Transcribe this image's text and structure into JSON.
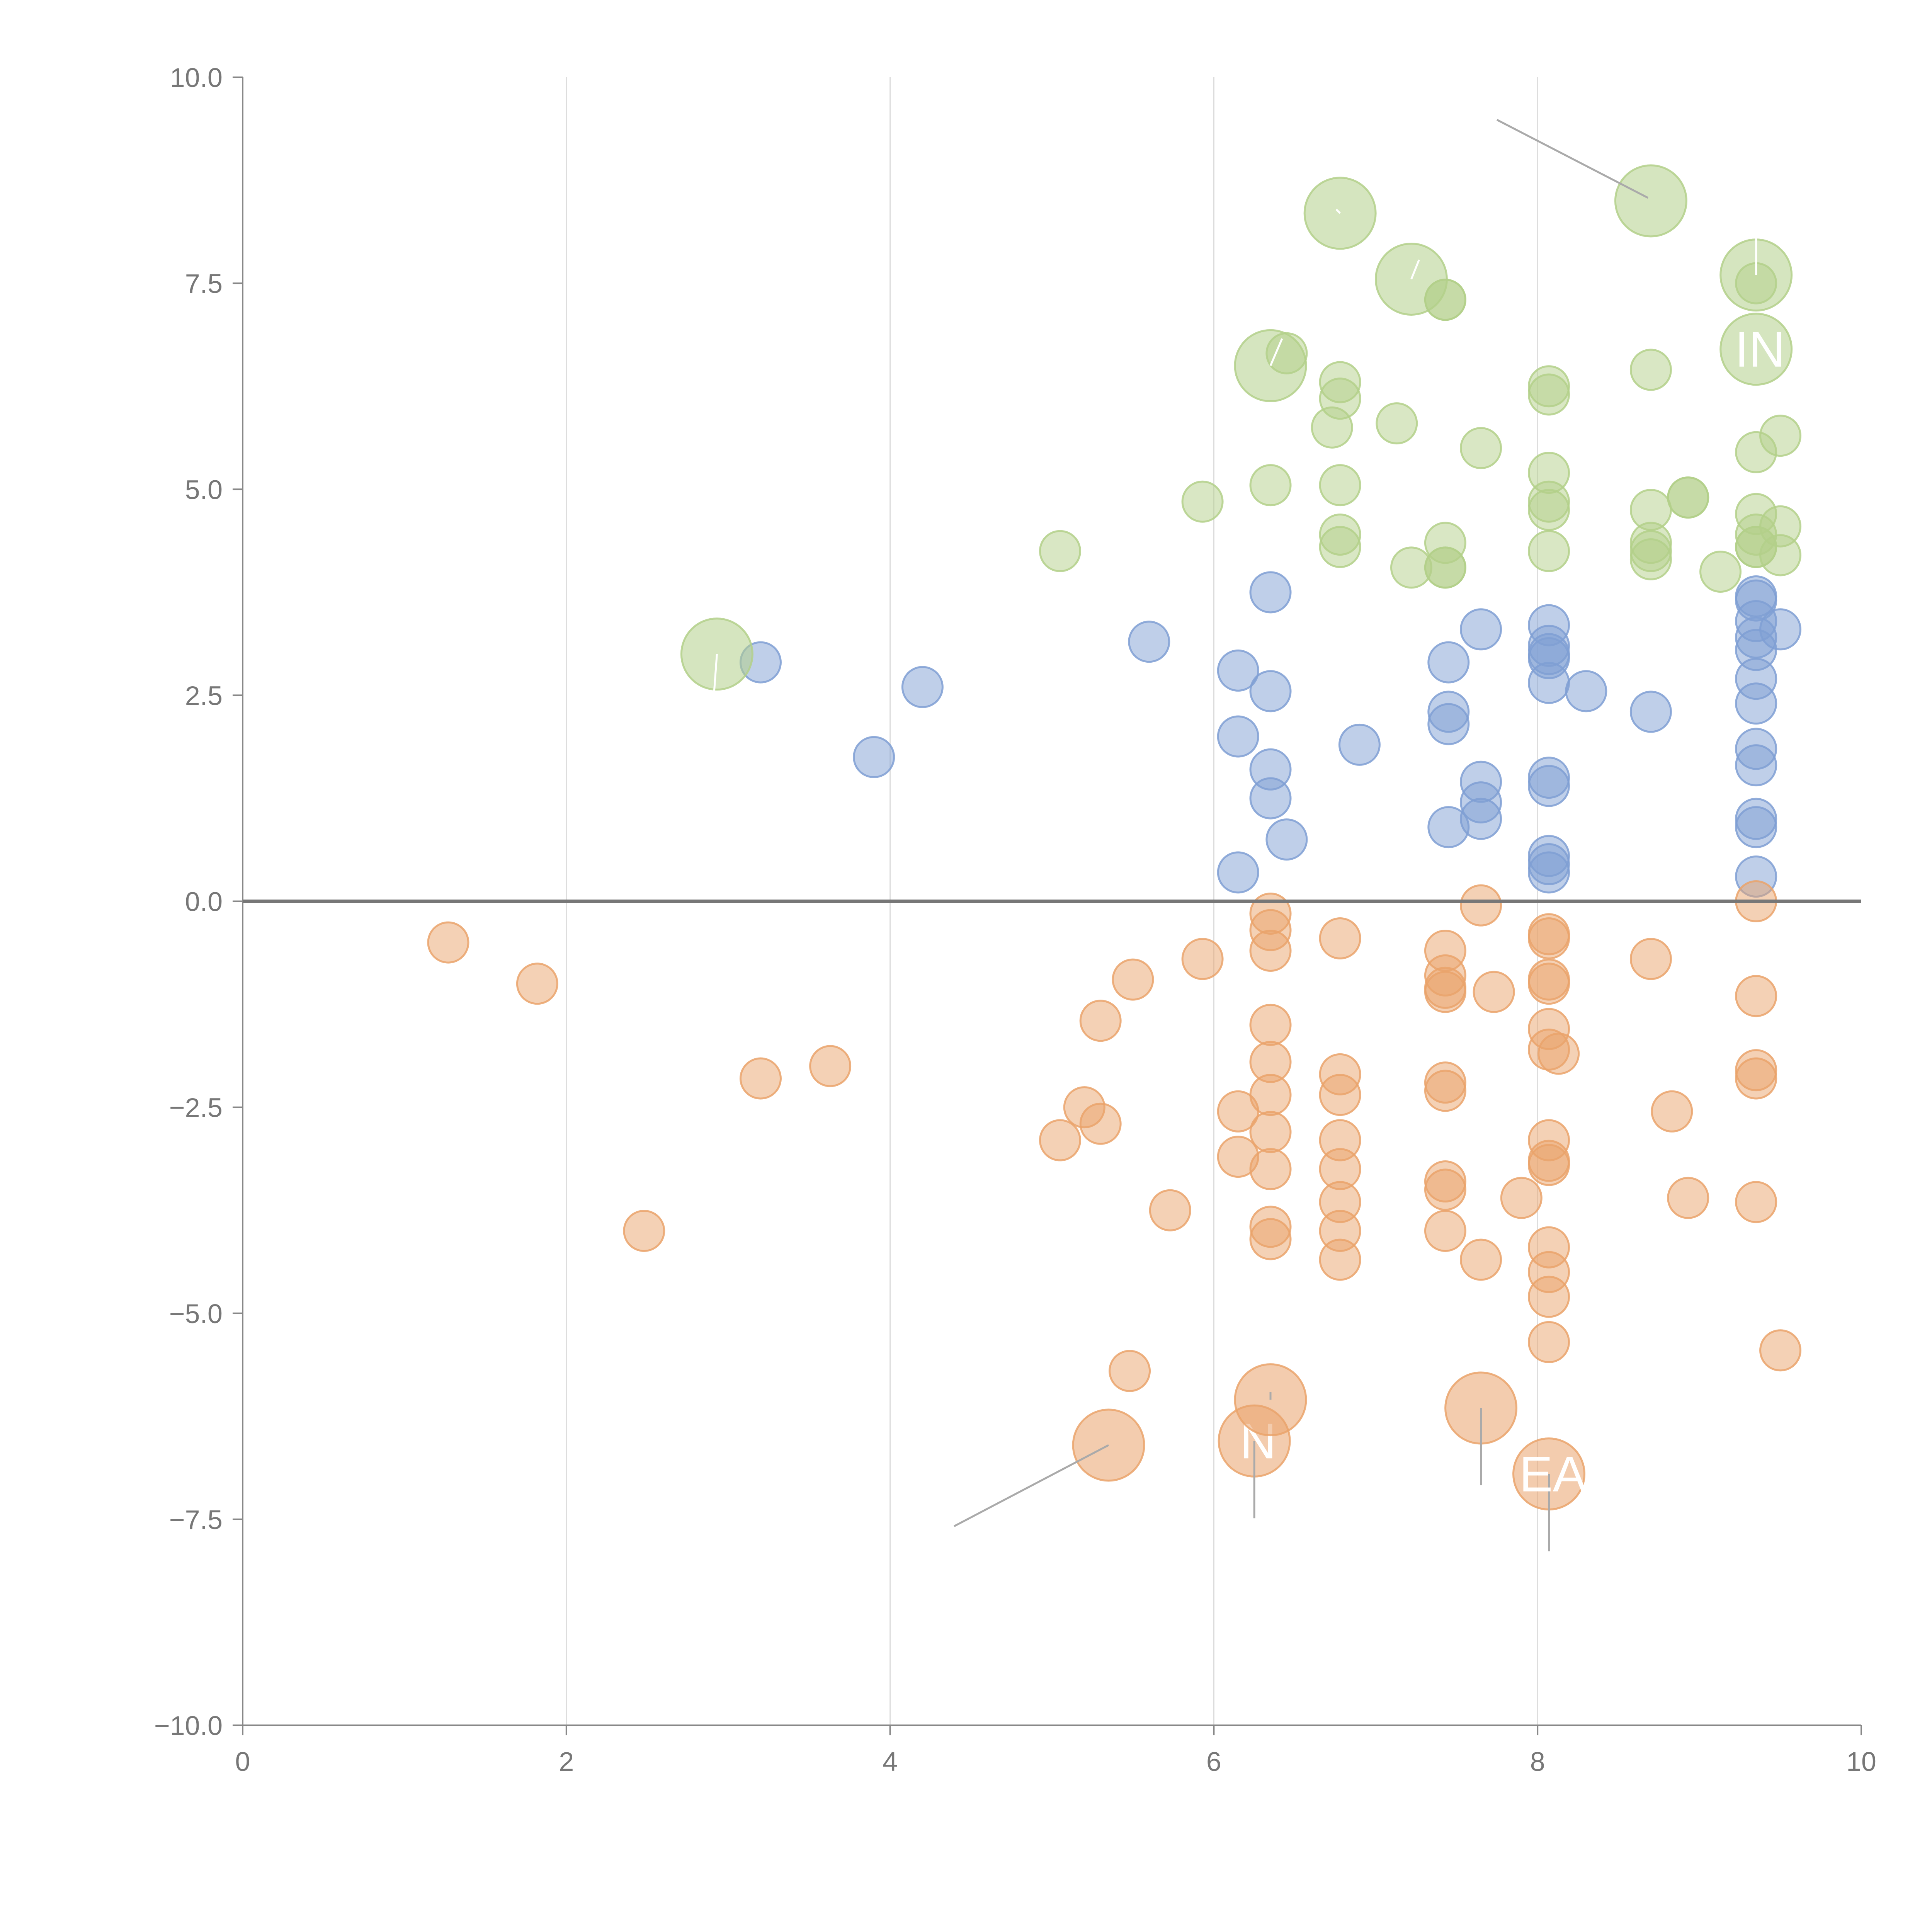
{
  "chart_data": {
    "type": "scatter",
    "title": "",
    "xlabel": "",
    "ylabel": "",
    "xlim": [
      0,
      10
    ],
    "ylim": [
      -10,
      10
    ],
    "xticks": [
      "0",
      "2",
      "4",
      "6",
      "8",
      "10"
    ],
    "xtick_values": [
      0,
      2,
      4,
      6,
      8,
      10
    ],
    "yticks": [
      "10.0",
      "7.5",
      "5.0",
      "2.5",
      "0.0",
      "−2.5",
      "−5.0",
      "−7.5",
      "−10.0"
    ],
    "ytick_values": [
      10,
      7.5,
      5,
      2.5,
      0,
      -2.5,
      -5,
      -7.5,
      -10
    ],
    "vertical_gridlines_at": [
      2,
      4,
      6,
      8
    ],
    "zero_line": 0,
    "colors": {
      "blue": "#7f9fd3",
      "orange": "#eaa36b",
      "green": "#b3d08a",
      "axis": "#888888",
      "grid": "#dddddd",
      "zero_line": "#777777",
      "leader": "#aaaaaa",
      "leader_light": "#ffffff"
    },
    "series": [
      {
        "name": "blue",
        "color": "#7f9fd3",
        "points": [
          {
            "x": 3.2,
            "y": 2.9
          },
          {
            "x": 3.9,
            "y": 1.75
          },
          {
            "x": 4.2,
            "y": 2.6
          },
          {
            "x": 5.6,
            "y": 3.15
          },
          {
            "x": 6.15,
            "y": 2.8
          },
          {
            "x": 6.15,
            "y": 2.0
          },
          {
            "x": 6.15,
            "y": 0.35
          },
          {
            "x": 6.35,
            "y": 3.75
          },
          {
            "x": 6.35,
            "y": 2.55
          },
          {
            "x": 6.35,
            "y": 1.6
          },
          {
            "x": 6.35,
            "y": 1.25
          },
          {
            "x": 6.45,
            "y": 0.75
          },
          {
            "x": 6.9,
            "y": 1.9
          },
          {
            "x": 7.45,
            "y": 2.9
          },
          {
            "x": 7.45,
            "y": 2.3
          },
          {
            "x": 7.45,
            "y": 2.15
          },
          {
            "x": 7.45,
            "y": 0.9
          },
          {
            "x": 7.65,
            "y": 3.3
          },
          {
            "x": 7.65,
            "y": 1.45
          },
          {
            "x": 7.65,
            "y": 1.2
          },
          {
            "x": 7.65,
            "y": 1.0
          },
          {
            "x": 8.07,
            "y": 3.35
          },
          {
            "x": 8.07,
            "y": 3.1
          },
          {
            "x": 8.07,
            "y": 3.0
          },
          {
            "x": 8.07,
            "y": 2.95
          },
          {
            "x": 8.07,
            "y": 2.65
          },
          {
            "x": 8.07,
            "y": 1.5
          },
          {
            "x": 8.07,
            "y": 1.4
          },
          {
            "x": 8.07,
            "y": 0.55
          },
          {
            "x": 8.07,
            "y": 0.45
          },
          {
            "x": 8.07,
            "y": 0.35
          },
          {
            "x": 8.3,
            "y": 2.55
          },
          {
            "x": 8.7,
            "y": 2.3
          },
          {
            "x": 9.35,
            "y": 3.7
          },
          {
            "x": 9.35,
            "y": 3.65
          },
          {
            "x": 9.35,
            "y": 3.4
          },
          {
            "x": 9.35,
            "y": 3.2
          },
          {
            "x": 9.35,
            "y": 3.05
          },
          {
            "x": 9.35,
            "y": 2.7
          },
          {
            "x": 9.35,
            "y": 2.4
          },
          {
            "x": 9.35,
            "y": 1.85
          },
          {
            "x": 9.35,
            "y": 1.65
          },
          {
            "x": 9.35,
            "y": 1.0
          },
          {
            "x": 9.35,
            "y": 0.9
          },
          {
            "x": 9.35,
            "y": 0.3
          },
          {
            "x": 9.5,
            "y": 3.3
          }
        ]
      },
      {
        "name": "orange",
        "color": "#eaa36b",
        "points": [
          {
            "x": 1.27,
            "y": -0.5
          },
          {
            "x": 1.82,
            "y": -1.0
          },
          {
            "x": 2.48,
            "y": -4.0
          },
          {
            "x": 3.2,
            "y": -2.15
          },
          {
            "x": 3.63,
            "y": -2.0
          },
          {
            "x": 5.05,
            "y": -2.9
          },
          {
            "x": 5.2,
            "y": -2.5
          },
          {
            "x": 5.3,
            "y": -2.7
          },
          {
            "x": 5.3,
            "y": -1.45
          },
          {
            "x": 5.5,
            "y": -0.95
          },
          {
            "x": 5.48,
            "y": -5.7
          },
          {
            "x": 5.73,
            "y": -3.75
          },
          {
            "x": 5.93,
            "y": -0.7
          },
          {
            "x": 6.15,
            "y": -2.55
          },
          {
            "x": 6.15,
            "y": -3.1
          },
          {
            "x": 6.35,
            "y": -0.15
          },
          {
            "x": 6.35,
            "y": -0.35
          },
          {
            "x": 6.35,
            "y": -0.6
          },
          {
            "x": 6.35,
            "y": -1.5
          },
          {
            "x": 6.35,
            "y": -1.95
          },
          {
            "x": 6.35,
            "y": -2.35
          },
          {
            "x": 6.35,
            "y": -2.8
          },
          {
            "x": 6.35,
            "y": -3.25
          },
          {
            "x": 6.35,
            "y": -3.95
          },
          {
            "x": 6.35,
            "y": -4.1
          },
          {
            "x": 6.78,
            "y": -0.45
          },
          {
            "x": 6.78,
            "y": -2.1
          },
          {
            "x": 6.78,
            "y": -2.35
          },
          {
            "x": 6.78,
            "y": -2.9
          },
          {
            "x": 6.78,
            "y": -3.25
          },
          {
            "x": 6.78,
            "y": -3.65
          },
          {
            "x": 6.78,
            "y": -4.0
          },
          {
            "x": 6.78,
            "y": -4.35
          },
          {
            "x": 7.43,
            "y": -0.6
          },
          {
            "x": 7.43,
            "y": -0.9
          },
          {
            "x": 7.43,
            "y": -1.05
          },
          {
            "x": 7.43,
            "y": -1.1
          },
          {
            "x": 7.43,
            "y": -2.2
          },
          {
            "x": 7.43,
            "y": -2.3
          },
          {
            "x": 7.43,
            "y": -3.4
          },
          {
            "x": 7.43,
            "y": -3.5
          },
          {
            "x": 7.43,
            "y": -4.0
          },
          {
            "x": 7.65,
            "y": -0.05
          },
          {
            "x": 7.65,
            "y": -4.35
          },
          {
            "x": 7.73,
            "y": -1.1
          },
          {
            "x": 7.9,
            "y": -3.6
          },
          {
            "x": 8.07,
            "y": -0.4
          },
          {
            "x": 8.07,
            "y": -0.45
          },
          {
            "x": 8.07,
            "y": -0.95
          },
          {
            "x": 8.07,
            "y": -1.0
          },
          {
            "x": 8.07,
            "y": -1.55
          },
          {
            "x": 8.07,
            "y": -1.8
          },
          {
            "x": 8.13,
            "y": -1.85
          },
          {
            "x": 8.07,
            "y": -2.9
          },
          {
            "x": 8.07,
            "y": -3.15
          },
          {
            "x": 8.07,
            "y": -3.2
          },
          {
            "x": 8.07,
            "y": -4.2
          },
          {
            "x": 8.07,
            "y": -4.5
          },
          {
            "x": 8.07,
            "y": -4.8
          },
          {
            "x": 8.07,
            "y": -5.35
          },
          {
            "x": 8.7,
            "y": -0.7
          },
          {
            "x": 8.83,
            "y": -2.55
          },
          {
            "x": 8.93,
            "y": -3.6
          },
          {
            "x": 9.35,
            "y": 0.0
          },
          {
            "x": 9.35,
            "y": -1.15
          },
          {
            "x": 9.35,
            "y": -2.05
          },
          {
            "x": 9.35,
            "y": -2.15
          },
          {
            "x": 9.35,
            "y": -3.65
          },
          {
            "x": 9.5,
            "y": -5.45
          }
        ]
      },
      {
        "name": "green",
        "color": "#b3d08a",
        "points": [
          {
            "x": 5.05,
            "y": 4.25
          },
          {
            "x": 5.93,
            "y": 4.85
          },
          {
            "x": 6.35,
            "y": 5.05
          },
          {
            "x": 6.45,
            "y": 6.65
          },
          {
            "x": 6.73,
            "y": 5.75
          },
          {
            "x": 6.78,
            "y": 6.3
          },
          {
            "x": 6.78,
            "y": 6.1
          },
          {
            "x": 6.78,
            "y": 5.05
          },
          {
            "x": 6.78,
            "y": 4.45
          },
          {
            "x": 6.78,
            "y": 4.3
          },
          {
            "x": 7.13,
            "y": 5.8
          },
          {
            "x": 7.22,
            "y": 4.05
          },
          {
            "x": 7.43,
            "y": 7.3
          },
          {
            "x": 7.43,
            "y": 7.3
          },
          {
            "x": 7.43,
            "y": 4.35
          },
          {
            "x": 7.43,
            "y": 4.05
          },
          {
            "x": 7.43,
            "y": 4.05
          },
          {
            "x": 7.65,
            "y": 5.5
          },
          {
            "x": 8.07,
            "y": 6.25
          },
          {
            "x": 8.07,
            "y": 6.15
          },
          {
            "x": 8.07,
            "y": 5.2
          },
          {
            "x": 8.07,
            "y": 4.85
          },
          {
            "x": 8.07,
            "y": 4.75
          },
          {
            "x": 8.07,
            "y": 4.25
          },
          {
            "x": 8.7,
            "y": 6.45
          },
          {
            "x": 8.7,
            "y": 4.75
          },
          {
            "x": 8.7,
            "y": 4.35
          },
          {
            "x": 8.7,
            "y": 4.25
          },
          {
            "x": 8.7,
            "y": 4.15
          },
          {
            "x": 8.93,
            "y": 4.9
          },
          {
            "x": 8.93,
            "y": 4.9
          },
          {
            "x": 9.13,
            "y": 4.0
          },
          {
            "x": 9.35,
            "y": 7.5
          },
          {
            "x": 9.35,
            "y": 5.45
          },
          {
            "x": 9.35,
            "y": 4.7
          },
          {
            "x": 9.35,
            "y": 4.45
          },
          {
            "x": 9.35,
            "y": 4.3
          },
          {
            "x": 9.35,
            "y": 4.3
          },
          {
            "x": 9.5,
            "y": 5.65
          },
          {
            "x": 9.5,
            "y": 4.55
          },
          {
            "x": 9.5,
            "y": 4.2
          }
        ]
      }
    ],
    "annotations": [
      {
        "series": "green",
        "x": 2.93,
        "y": 3.0,
        "size": "large",
        "label": ""
      },
      {
        "series": "green",
        "x": 6.35,
        "y": 6.5,
        "size": "large",
        "label": ""
      },
      {
        "series": "green",
        "x": 6.78,
        "y": 8.35,
        "size": "large",
        "label": ""
      },
      {
        "series": "green",
        "x": 7.22,
        "y": 7.55,
        "size": "large",
        "label": ""
      },
      {
        "series": "green",
        "x": 8.7,
        "y": 8.5,
        "size": "large",
        "label": ""
      },
      {
        "series": "green",
        "x": 9.35,
        "y": 7.6,
        "size": "large",
        "label": ""
      },
      {
        "series": "green",
        "x": 9.35,
        "y": 6.7,
        "size": "large",
        "label": "IN"
      },
      {
        "series": "orange",
        "x": 5.35,
        "y": -6.6,
        "size": "large",
        "label": ""
      },
      {
        "series": "orange",
        "x": 6.25,
        "y": -6.55,
        "size": "large",
        "label": "N"
      },
      {
        "series": "orange",
        "x": 6.35,
        "y": -6.05,
        "size": "large",
        "label": ""
      },
      {
        "series": "orange",
        "x": 7.65,
        "y": -6.15,
        "size": "large",
        "label": ""
      },
      {
        "series": "orange",
        "x": 8.07,
        "y": -6.95,
        "size": "large",
        "label": "EA"
      }
    ]
  }
}
